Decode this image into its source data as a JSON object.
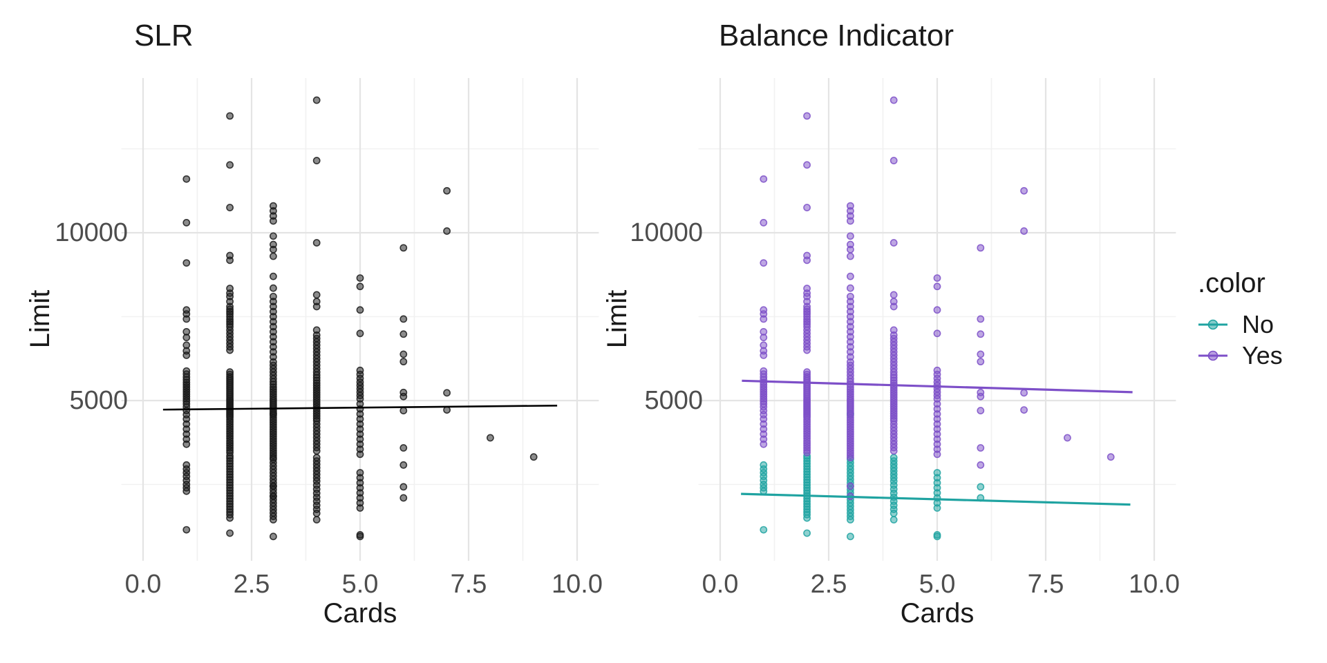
{
  "titles": {
    "left": "SLR",
    "right": "Balance Indicator"
  },
  "axes": {
    "x": {
      "label": "Cards",
      "tick_labels": [
        "0.0",
        "2.5",
        "5.0",
        "7.5",
        "10.0"
      ]
    },
    "y": {
      "label": "Limit",
      "tick_labels": [
        "10000",
        "5000"
      ]
    }
  },
  "legend": {
    "title": ".color",
    "entries": [
      {
        "label": "No",
        "color": "#1FA3A1"
      },
      {
        "label": "Yes",
        "color": "#7D4FC8"
      }
    ]
  },
  "colors": {
    "point_black": "#1a1a1a",
    "no": "#1FA3A1",
    "yes": "#7D4FC8",
    "slr_line": "#000000",
    "grid_major": "#e4e4e4",
    "grid_minor": "#f1f1f1",
    "tick_text": "#4d4d4d"
  },
  "chart_data": {
    "type": "scatter",
    "panels": [
      {
        "title": "SLR",
        "coloring": "single"
      },
      {
        "title": "Balance Indicator",
        "coloring": "by_group"
      }
    ],
    "xlabel": "Cards",
    "ylabel": "Limit",
    "x_ticks": [
      0,
      2.5,
      5,
      7.5,
      10
    ],
    "x_minor": [
      1.25,
      3.75,
      6.25,
      8.75
    ],
    "y_ticks": [
      5000,
      10000
    ],
    "y_minor": [
      2500,
      7500,
      12500
    ],
    "xlim": [
      -0.5,
      10.5
    ],
    "ylim": [
      200,
      14570
    ],
    "legend_groups": [
      "No",
      "Yes"
    ],
    "groups": [
      {
        "cards": 1,
        "yes": [
          11600,
          10300,
          9100,
          7700,
          7580,
          7430,
          7050,
          6880,
          6650,
          6480,
          6350,
          5880,
          5790,
          5700,
          5620,
          5540,
          5470,
          5400,
          5330,
          5260,
          5190,
          5120,
          5050,
          4980,
          4900,
          4810,
          4700,
          4580,
          4450,
          4300,
          4150,
          4000,
          3850,
          3700
        ],
        "no": [
          3080,
          2960,
          2850,
          2740,
          2620,
          2500,
          2400,
          2300,
          1150
        ]
      },
      {
        "cards": 2,
        "yes": [
          13480,
          12020,
          10750,
          9320,
          9180,
          8340,
          8200,
          8100,
          7950,
          7800,
          7720,
          7650,
          7580,
          7500,
          7420,
          7350,
          7280,
          7200,
          7100,
          7000,
          6900,
          6800,
          6700,
          6600,
          6500,
          5850,
          5780,
          5710,
          5650,
          5590,
          5530,
          5470,
          5410,
          5350,
          5290,
          5230,
          5170,
          5110,
          5050,
          5000,
          4950,
          4900,
          4850,
          4800,
          4750,
          4700,
          4650,
          4600,
          4550,
          4500,
          4430,
          4360,
          4290,
          4220,
          4150,
          4080,
          4010,
          3940,
          3870,
          3800,
          3730,
          3660,
          3590,
          3520,
          3450
        ],
        "no": [
          3350,
          3280,
          3200,
          3120,
          3040,
          2960,
          2880,
          2800,
          2720,
          2640,
          2560,
          2480,
          2400,
          2320,
          2240,
          2160,
          2080,
          2000,
          1920,
          1840,
          1760,
          1680,
          1600,
          1500,
          1050
        ]
      },
      {
        "cards": 3,
        "yes": [
          10800,
          10650,
          10500,
          10350,
          9900,
          9650,
          9500,
          9300,
          8700,
          8350,
          8100,
          7950,
          7800,
          7650,
          7500,
          7350,
          7200,
          7050,
          6900,
          6750,
          6600,
          6450,
          6300,
          6150,
          6050,
          5950,
          5850,
          5750,
          5650,
          5560,
          5480,
          5400,
          5330,
          5260,
          5190,
          5120,
          5050,
          4990,
          4930,
          4870,
          4810,
          4750,
          4690,
          4630,
          4560,
          4490,
          4420,
          4350,
          4280,
          4210,
          4140,
          4070,
          4000,
          3930,
          3860,
          3790,
          3720,
          3650,
          3580,
          3510,
          3440,
          3370,
          3300,
          2450,
          2150
        ],
        "no": [
          4600,
          3250,
          3150,
          3050,
          2950,
          2850,
          2750,
          2650,
          2550,
          2450,
          2350,
          2250,
          2150,
          2050,
          1950,
          1850,
          1750,
          1650,
          1550,
          1450,
          950
        ]
      },
      {
        "cards": 4,
        "yes": [
          13950,
          12150,
          9700,
          8150,
          7950,
          7800,
          7100,
          6950,
          6850,
          6750,
          6650,
          6550,
          6450,
          6350,
          6250,
          6150,
          6050,
          5950,
          5850,
          5760,
          5680,
          5600,
          5520,
          5450,
          5380,
          5310,
          5240,
          5170,
          5100,
          5030,
          4960,
          4890,
          4820,
          4750,
          4680,
          4610,
          4540,
          4470,
          4400,
          4300,
          4200,
          4100,
          4000,
          3900,
          3800,
          3700,
          3600,
          3500
        ],
        "no": [
          3300,
          3200,
          3100,
          3000,
          2900,
          2800,
          2700,
          2600,
          2480,
          2360,
          2240,
          2120,
          2000,
          1880,
          1760,
          1640,
          1450
        ]
      },
      {
        "cards": 5,
        "yes": [
          8650,
          8400,
          7700,
          7000,
          5900,
          5780,
          5660,
          5550,
          5450,
          5350,
          5250,
          5150,
          5050,
          4900,
          4750,
          4600,
          4450,
          4300,
          4150,
          4000,
          3850,
          3700,
          3550,
          3400
        ],
        "no": [
          2850,
          2700,
          2550,
          2400,
          2250,
          2100,
          1950,
          1800,
          1000,
          950
        ]
      },
      {
        "cards": 6,
        "yes": [
          9550,
          7430,
          6980,
          6380,
          6160,
          5240,
          5120,
          4700,
          3590,
          3080
        ],
        "no": [
          2430,
          2100
        ]
      },
      {
        "cards": 7,
        "yes": [
          11250,
          10050,
          5230,
          4720
        ],
        "no": []
      },
      {
        "cards": 8,
        "yes": [
          3890
        ],
        "no": []
      },
      {
        "cards": 9,
        "yes": [
          3320
        ],
        "no": []
      }
    ],
    "lines": {
      "slr": {
        "x1": 0.46,
        "y1": 4730,
        "x2": 9.54,
        "y2": 4850
      },
      "yes": {
        "x1": 0.5,
        "y1": 5590,
        "x2": 9.5,
        "y2": 5250
      },
      "no": {
        "x1": 0.48,
        "y1": 2220,
        "x2": 9.45,
        "y2": 1900
      }
    }
  }
}
